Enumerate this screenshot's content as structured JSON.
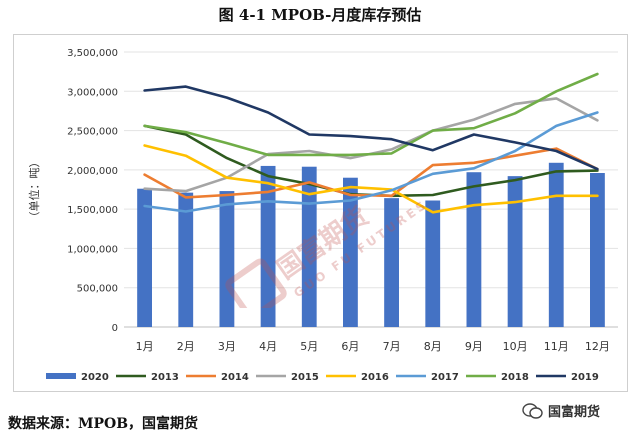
{
  "figure_title": "图 4-1 MPOB-月度库存预估",
  "source_text": "数据来源：MPOB，国富期货",
  "brand": {
    "label": "国富期货",
    "icon": "wechat-icon"
  },
  "watermark": {
    "cn": "国富期货",
    "en": "GUO FU FUTURES"
  },
  "chart_data": {
    "type": "bar",
    "title": "",
    "ylabel": "（单位：吨）",
    "xlabel": "",
    "ylim": [
      0,
      3500000
    ],
    "yticks": [
      0,
      500000,
      1000000,
      1500000,
      2000000,
      2500000,
      3000000,
      3500000
    ],
    "ytick_labels": [
      "0",
      "500,000",
      "1,000,000",
      "1,500,000",
      "2,000,000",
      "2,500,000",
      "3,000,000",
      "3,500,000"
    ],
    "grid": true,
    "legend_position": "bottom",
    "categories": [
      "1月",
      "2月",
      "3月",
      "4月",
      "5月",
      "6月",
      "7月",
      "8月",
      "9月",
      "10月",
      "11月",
      "12月"
    ],
    "bar_series": {
      "name": "2020",
      "color": "#4472C4",
      "values": [
        1760000,
        1710000,
        1730000,
        2050000,
        2040000,
        1900000,
        1640000,
        1610000,
        1970000,
        1920000,
        2090000,
        1960000
      ]
    },
    "series": [
      {
        "name": "2013",
        "color": "#2F5B1F",
        "values": [
          2560000,
          2450000,
          2150000,
          1920000,
          1820000,
          1690000,
          1670000,
          1680000,
          1790000,
          1870000,
          1980000,
          1990000
        ]
      },
      {
        "name": "2014",
        "color": "#ED7D31",
        "values": [
          1940000,
          1650000,
          1680000,
          1720000,
          1840000,
          1680000,
          1670000,
          2060000,
          2090000,
          2180000,
          2270000,
          2010000
        ]
      },
      {
        "name": "2015",
        "color": "#A5A5A5",
        "values": [
          1760000,
          1730000,
          1900000,
          2200000,
          2240000,
          2150000,
          2260000,
          2500000,
          2640000,
          2840000,
          2910000,
          2630000
        ]
      },
      {
        "name": "2016",
        "color": "#FFC000",
        "values": [
          2310000,
          2180000,
          1900000,
          1830000,
          1690000,
          1780000,
          1750000,
          1460000,
          1550000,
          1590000,
          1670000,
          1670000
        ]
      },
      {
        "name": "2017",
        "color": "#5B9BD5",
        "values": [
          1540000,
          1470000,
          1560000,
          1600000,
          1570000,
          1610000,
          1740000,
          1950000,
          2020000,
          2240000,
          2560000,
          2730000
        ]
      },
      {
        "name": "2018",
        "color": "#70AD47",
        "values": [
          2560000,
          2480000,
          2340000,
          2190000,
          2190000,
          2190000,
          2210000,
          2500000,
          2530000,
          2720000,
          3000000,
          3220000
        ]
      },
      {
        "name": "2019",
        "color": "#203864",
        "values": [
          3010000,
          3060000,
          2920000,
          2730000,
          2450000,
          2430000,
          2390000,
          2250000,
          2450000,
          2350000,
          2240000,
          2010000
        ]
      }
    ]
  }
}
